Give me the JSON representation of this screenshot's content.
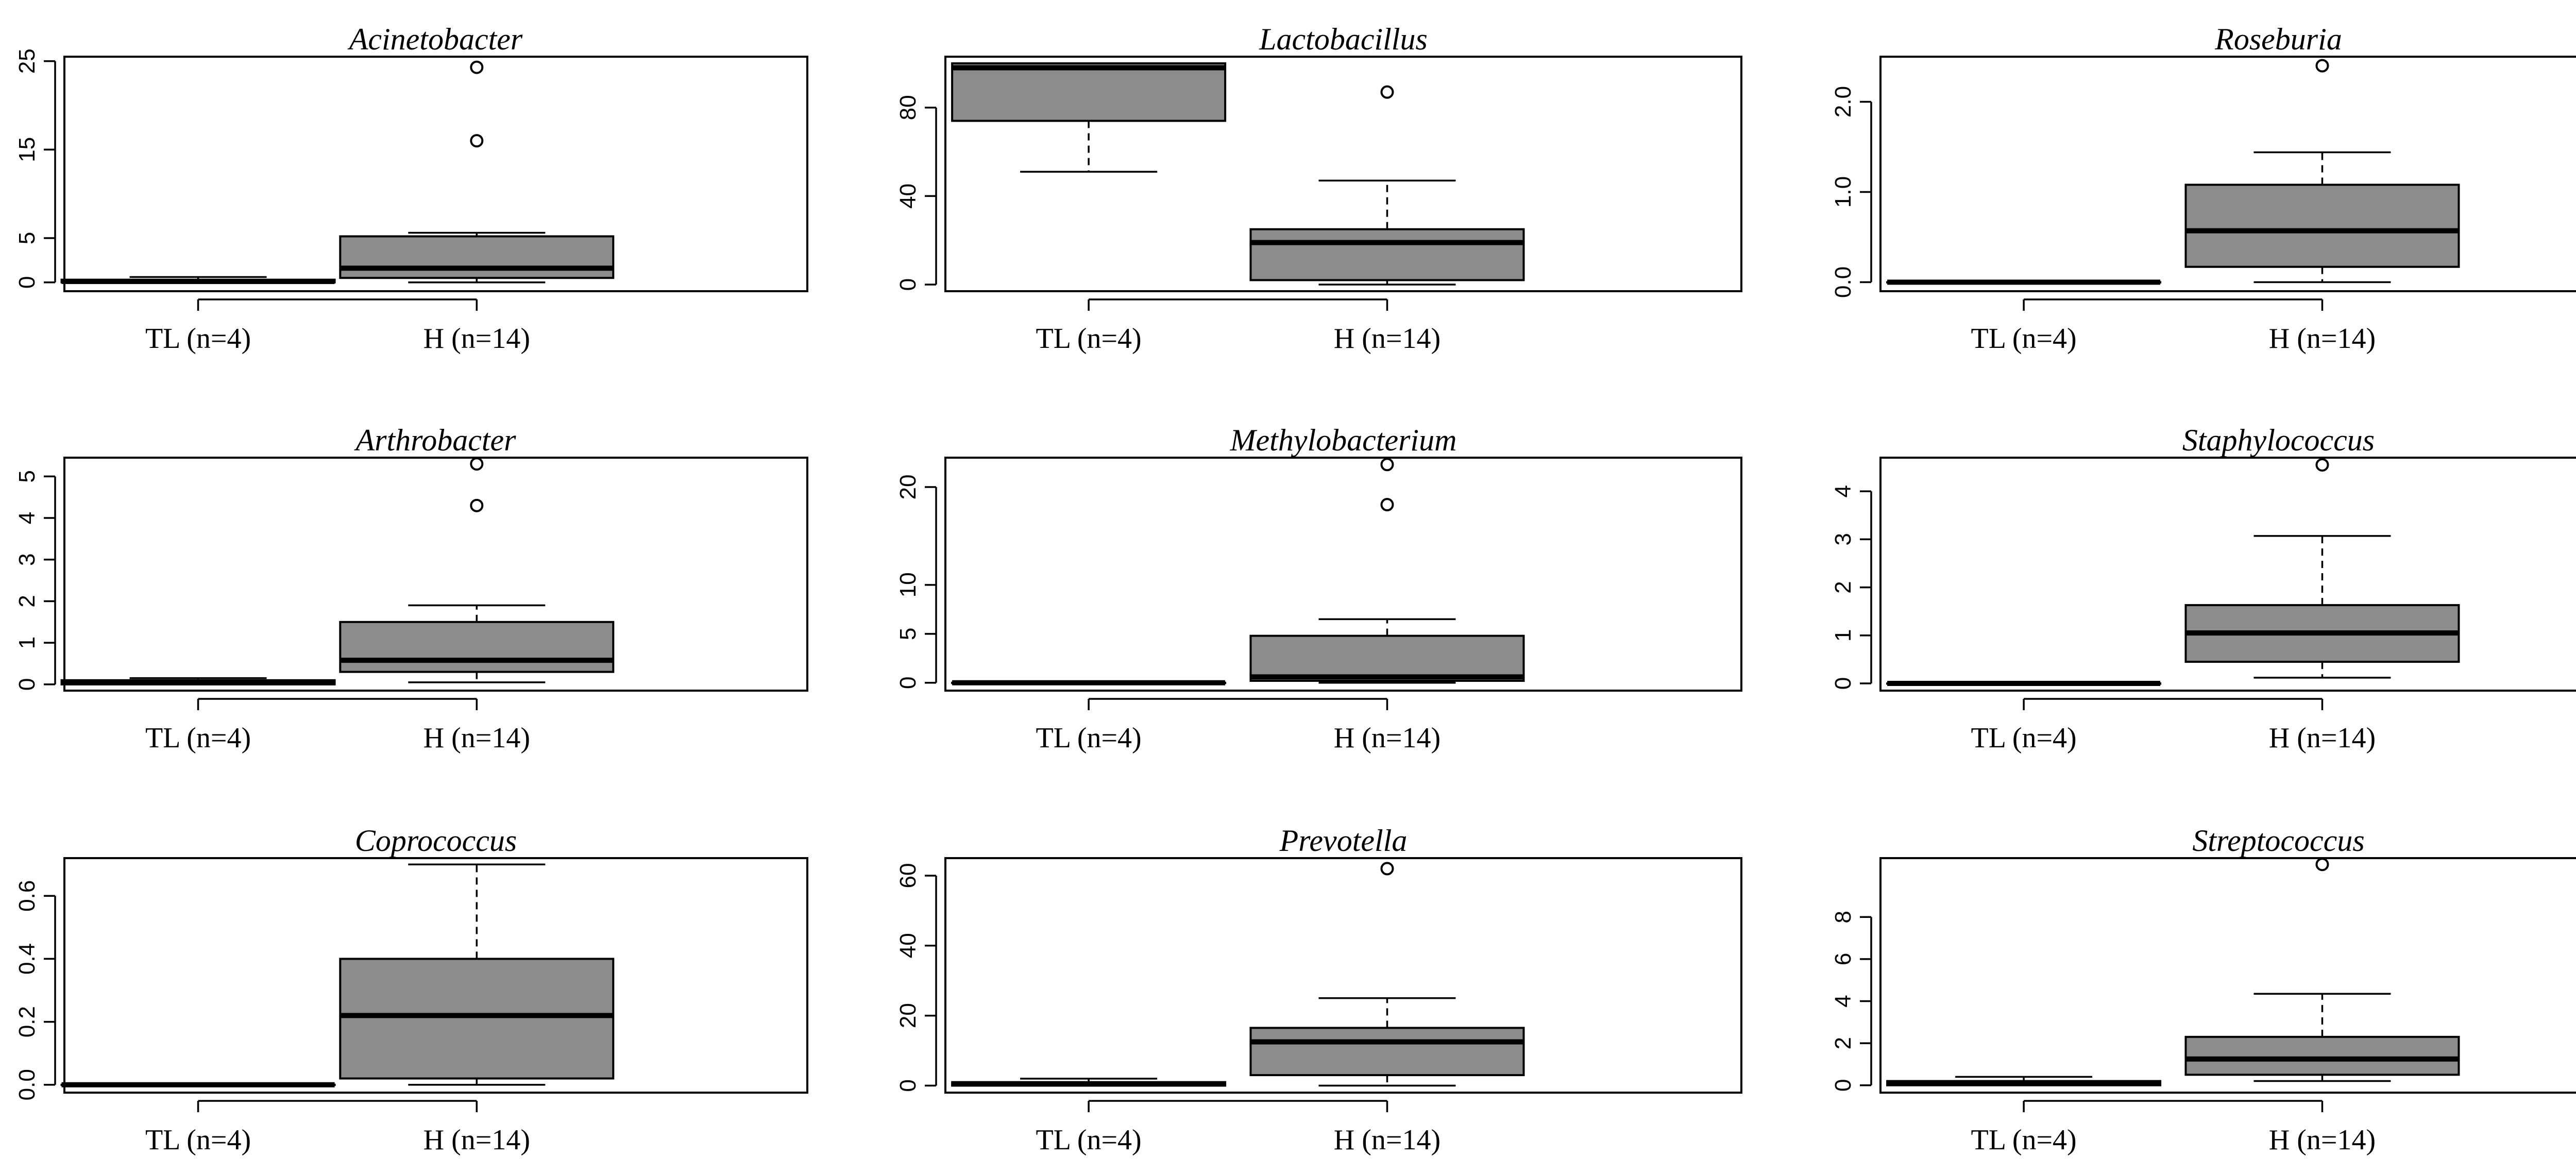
{
  "chart_data": [
    {
      "type": "box",
      "title": "Acinetobacter",
      "categories": [
        "TL (n=4)",
        "H (n=14)"
      ],
      "ylim": [
        -1,
        25.5
      ],
      "yticks": [
        0,
        5,
        15,
        25
      ],
      "boxes": [
        {
          "category": "TL (n=4)",
          "lower_whisker": 0,
          "q1": 0,
          "median": 0.1,
          "q3": 0.3,
          "upper_whisker": 0.6,
          "outliers": []
        },
        {
          "category": "H (n=14)",
          "lower_whisker": 0,
          "q1": 0.5,
          "median": 1.6,
          "q3": 5.2,
          "upper_whisker": 5.6,
          "outliers": [
            16.0,
            24.3
          ]
        }
      ]
    },
    {
      "type": "box",
      "title": "Lactobacillus",
      "categories": [
        "TL (n=4)",
        "H (n=14)"
      ],
      "ylim": [
        -3,
        103
      ],
      "yticks": [
        0,
        40,
        80
      ],
      "boxes": [
        {
          "category": "TL (n=4)",
          "lower_whisker": 51,
          "q1": 74,
          "median": 98,
          "q3": 100,
          "upper_whisker": 100,
          "outliers": []
        },
        {
          "category": "H (n=14)",
          "lower_whisker": 0,
          "q1": 2,
          "median": 19,
          "q3": 25,
          "upper_whisker": 47,
          "outliers": [
            87
          ]
        }
      ]
    },
    {
      "type": "box",
      "title": "Roseburia",
      "categories": [
        "TL (n=4)",
        "H (n=14)"
      ],
      "ylim": [
        -0.1,
        2.5
      ],
      "yticks": [
        0.0,
        1.0,
        2.0
      ],
      "ytick_labels": [
        "0.0",
        "1.0",
        "2.0"
      ],
      "boxes": [
        {
          "category": "TL (n=4)",
          "lower_whisker": 0,
          "q1": 0,
          "median": 0,
          "q3": 0,
          "upper_whisker": 0,
          "outliers": []
        },
        {
          "category": "H (n=14)",
          "lower_whisker": 0,
          "q1": 0.17,
          "median": 0.57,
          "q3": 1.08,
          "upper_whisker": 1.44,
          "outliers": [
            2.4
          ]
        }
      ]
    },
    {
      "type": "box",
      "title": "Arthrobacter",
      "categories": [
        "TL (n=4)",
        "H (n=14)"
      ],
      "ylim": [
        -0.15,
        5.45
      ],
      "yticks": [
        0,
        1,
        2,
        3,
        4,
        5
      ],
      "boxes": [
        {
          "category": "TL (n=4)",
          "lower_whisker": 0,
          "q1": 0,
          "median": 0.04,
          "q3": 0.1,
          "upper_whisker": 0.15,
          "outliers": []
        },
        {
          "category": "H (n=14)",
          "lower_whisker": 0.05,
          "q1": 0.3,
          "median": 0.58,
          "q3": 1.5,
          "upper_whisker": 1.9,
          "outliers": [
            4.3,
            5.3
          ]
        }
      ]
    },
    {
      "type": "box",
      "title": "Methylobacterium",
      "categories": [
        "TL (n=4)",
        "H (n=14)"
      ],
      "ylim": [
        -0.8,
        23
      ],
      "yticks": [
        0,
        5,
        10,
        20
      ],
      "boxes": [
        {
          "category": "TL (n=4)",
          "lower_whisker": 0,
          "q1": 0,
          "median": 0,
          "q3": 0,
          "upper_whisker": 0,
          "outliers": []
        },
        {
          "category": "H (n=14)",
          "lower_whisker": 0,
          "q1": 0.2,
          "median": 0.6,
          "q3": 4.8,
          "upper_whisker": 6.5,
          "outliers": [
            18.2,
            22.3
          ]
        }
      ]
    },
    {
      "type": "box",
      "title": "Staphylococcus",
      "categories": [
        "TL (n=4)",
        "H (n=14)"
      ],
      "ylim": [
        -0.15,
        4.7
      ],
      "yticks": [
        0,
        1,
        2,
        3,
        4
      ],
      "boxes": [
        {
          "category": "TL (n=4)",
          "lower_whisker": 0,
          "q1": 0,
          "median": 0,
          "q3": 0,
          "upper_whisker": 0,
          "outliers": []
        },
        {
          "category": "H (n=14)",
          "lower_whisker": 0.12,
          "q1": 0.45,
          "median": 1.05,
          "q3": 1.63,
          "upper_whisker": 3.07,
          "outliers": [
            4.55
          ]
        }
      ]
    },
    {
      "type": "box",
      "title": "Coprococcus",
      "categories": [
        "TL (n=4)",
        "H (n=14)"
      ],
      "ylim": [
        -0.025,
        0.72
      ],
      "yticks": [
        0.0,
        0.2,
        0.4,
        0.6
      ],
      "ytick_labels": [
        "0.0",
        "0.2",
        "0.4",
        "0.6"
      ],
      "boxes": [
        {
          "category": "TL (n=4)",
          "lower_whisker": 0,
          "q1": 0,
          "median": 0,
          "q3": 0,
          "upper_whisker": 0,
          "outliers": []
        },
        {
          "category": "H (n=14)",
          "lower_whisker": 0,
          "q1": 0.02,
          "median": 0.22,
          "q3": 0.4,
          "upper_whisker": 0.7,
          "outliers": []
        }
      ]
    },
    {
      "type": "box",
      "title": "Prevotella",
      "categories": [
        "TL (n=4)",
        "H (n=14)"
      ],
      "ylim": [
        -2,
        65
      ],
      "yticks": [
        0,
        20,
        40,
        60
      ],
      "boxes": [
        {
          "category": "TL (n=4)",
          "lower_whisker": 0,
          "q1": 0,
          "median": 0.5,
          "q3": 1,
          "upper_whisker": 2,
          "outliers": []
        },
        {
          "category": "H (n=14)",
          "lower_whisker": 0,
          "q1": 3,
          "median": 12.5,
          "q3": 16.5,
          "upper_whisker": 25,
          "outliers": [
            62
          ]
        }
      ]
    },
    {
      "type": "box",
      "title": "Streptococcus",
      "categories": [
        "TL (n=4)",
        "H (n=14)"
      ],
      "ylim": [
        -0.35,
        10.8
      ],
      "yticks": [
        0,
        2,
        4,
        6,
        8
      ],
      "boxes": [
        {
          "category": "TL (n=4)",
          "lower_whisker": 0,
          "q1": 0,
          "median": 0.1,
          "q3": 0.2,
          "upper_whisker": 0.4,
          "outliers": []
        },
        {
          "category": "H (n=14)",
          "lower_whisker": 0.2,
          "q1": 0.5,
          "median": 1.25,
          "q3": 2.3,
          "upper_whisker": 4.35,
          "outliers": [
            10.5
          ]
        }
      ]
    }
  ]
}
